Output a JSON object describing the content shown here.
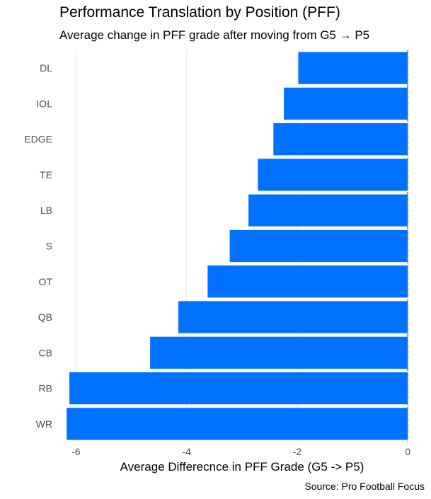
{
  "title": "Performance Translation by Position (PFF)",
  "subtitle": "Average change in PFF grade after moving from G5 → P5",
  "caption": "Source: Pro Football Focus",
  "chart_data": {
    "type": "bar",
    "orientation": "horizontal",
    "categories": [
      "DL",
      "IOL",
      "EDGE",
      "TE",
      "LB",
      "S",
      "OT",
      "QB",
      "CB",
      "RB",
      "WR"
    ],
    "values": [
      -1.98,
      -2.24,
      -2.43,
      -2.71,
      -2.88,
      -3.22,
      -3.62,
      -4.15,
      -4.66,
      -6.12,
      -6.17
    ],
    "xlabel": "Average Differecnce in PFF Grade (G5 -> P5)",
    "ylabel": "",
    "xlim": [
      -6.3,
      0.05
    ],
    "xticks": [
      -6,
      -4,
      -2,
      0
    ],
    "xtick_labels": [
      "-6",
      "-4",
      "-2",
      "0"
    ],
    "grid": "vertical-major",
    "reference_line": {
      "x": 0,
      "style": "dashed"
    },
    "legend": "none",
    "bar_color": "#0072ff",
    "grid_color": "#ebebeb",
    "reference_line_color": "#7f7f7f",
    "tick_label_color": "#4d4d4d"
  }
}
